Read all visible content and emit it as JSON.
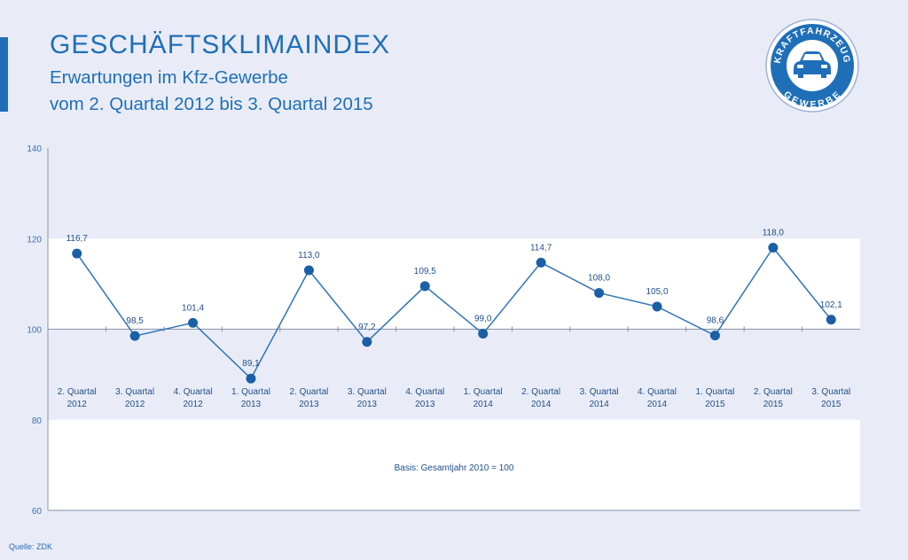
{
  "header": {
    "title": "GESCHÄFTSKLIMAINDEX",
    "subtitle_line1": "Erwartungen im Kfz-Gewerbe",
    "subtitle_line2": "vom 2. Quartal 2012 bis 3. Quartal 2015"
  },
  "logo": {
    "top_text": "KRAFTFAHRZEUG",
    "bottom_text": "GEWERBE",
    "icon": "car-icon"
  },
  "source": "Quelle: ZDK",
  "colors": {
    "accent": "#1f6fb8",
    "line": "#2e73b8",
    "point": "#1b5fa6",
    "background": "#e9ecf7",
    "band": "#ffffff"
  },
  "chart_data": {
    "type": "line",
    "categories": [
      [
        "2. Quartal",
        "2012"
      ],
      [
        "3. Quartal",
        "2012"
      ],
      [
        "4. Quartal",
        "2012"
      ],
      [
        "1. Quartal",
        "2013"
      ],
      [
        "2. Quartal",
        "2013"
      ],
      [
        "3. Quartal",
        "2013"
      ],
      [
        "4. Quartal",
        "2013"
      ],
      [
        "1. Quartal",
        "2014"
      ],
      [
        "2. Quartal",
        "2014"
      ],
      [
        "3. Quartal",
        "2014"
      ],
      [
        "4. Quartal",
        "2014"
      ],
      [
        "1. Quartal",
        "2015"
      ],
      [
        "2. Quartal",
        "2015"
      ],
      [
        "3. Quartal",
        "2015"
      ]
    ],
    "values": [
      116.7,
      98.5,
      101.4,
      89.1,
      113.0,
      97.2,
      109.5,
      99.0,
      114.7,
      108.0,
      105.0,
      98.6,
      118.0,
      102.1
    ],
    "value_labels": [
      "116,7",
      "98,5",
      "101,4",
      "89,1",
      "113,0",
      "97,2",
      "109,5",
      "99,0",
      "114,7",
      "108,0",
      "105,0",
      "98,6",
      "118,0",
      "102,1"
    ],
    "ylim": [
      60,
      140
    ],
    "yticks": [
      60,
      80,
      100,
      120,
      140
    ],
    "white_bands": [
      [
        60,
        80
      ],
      [
        100,
        120
      ]
    ],
    "baseline": 100,
    "annotation": "Basis: Gesamtjahr 2010 = 100",
    "grid": false,
    "legend": "none"
  }
}
